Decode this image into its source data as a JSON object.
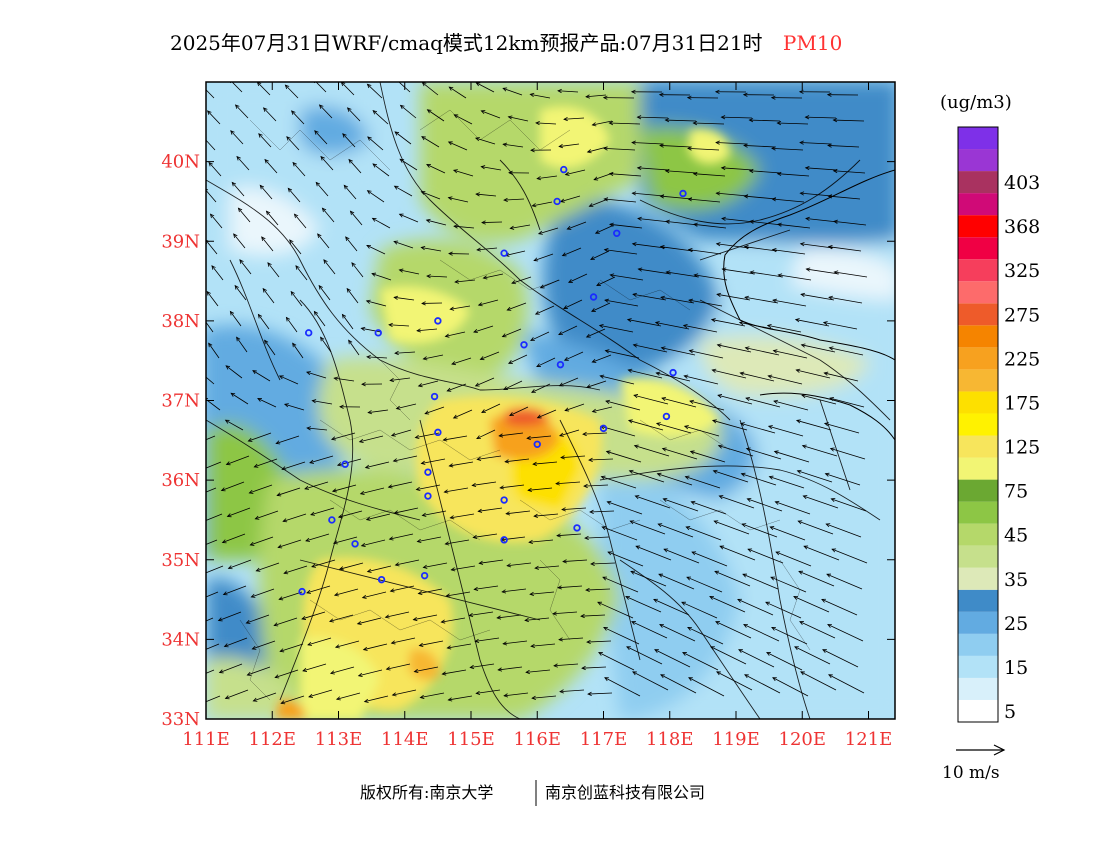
{
  "title": {
    "main": "2025年07月31日WRF/cmaq模式12km预报产品:07月31日21时",
    "species": "PM10",
    "species_color": "#ff3333"
  },
  "map": {
    "lon_ticks": [
      "111E",
      "112E",
      "113E",
      "114E",
      "115E",
      "116E",
      "117E",
      "118E",
      "119E",
      "120E",
      "121E"
    ],
    "lat_ticks": [
      "33N",
      "34N",
      "35N",
      "36N",
      "37N",
      "38N",
      "39N",
      "40N"
    ],
    "lon_range": [
      111,
      121.4
    ],
    "lat_range": [
      33,
      41
    ],
    "tick_label_color": "#ee3333",
    "stations": [
      [
        116.4,
        39.9
      ],
      [
        117.2,
        39.1
      ],
      [
        114.5,
        38.0
      ],
      [
        113.6,
        37.85
      ],
      [
        115.5,
        38.85
      ],
      [
        114.5,
        36.6
      ],
      [
        116.0,
        36.45
      ],
      [
        115.5,
        35.75
      ],
      [
        113.65,
        34.75
      ],
      [
        114.35,
        35.8
      ],
      [
        113.25,
        35.2
      ],
      [
        112.45,
        34.6
      ],
      [
        114.3,
        34.8
      ],
      [
        118.2,
        39.6
      ],
      [
        116.3,
        39.5
      ],
      [
        112.55,
        37.85
      ],
      [
        114.45,
        37.05
      ],
      [
        115.8,
        37.7
      ],
      [
        116.35,
        37.45
      ],
      [
        116.85,
        38.3
      ],
      [
        117.0,
        36.65
      ],
      [
        117.95,
        36.8
      ],
      [
        118.05,
        37.35
      ],
      [
        116.6,
        35.4
      ],
      [
        114.35,
        36.1
      ],
      [
        112.9,
        35.5
      ],
      [
        113.1,
        36.2
      ],
      [
        115.5,
        35.25
      ]
    ]
  },
  "colorbar": {
    "unit": "(ug/m3)",
    "bins": [
      {
        "color": "#ffffff"
      },
      {
        "color": "#d8f0fa"
      },
      {
        "color": "#b2e2f7"
      },
      {
        "color": "#8fcdf0"
      },
      {
        "color": "#62abe1"
      },
      {
        "color": "#3f8bc8"
      },
      {
        "color": "#dde9b8"
      },
      {
        "color": "#c6e08c"
      },
      {
        "color": "#b5d86a"
      },
      {
        "color": "#8dc645"
      },
      {
        "color": "#6ba832"
      },
      {
        "color": "#f2f574"
      },
      {
        "color": "#f7e55c"
      },
      {
        "color": "#fff200"
      },
      {
        "color": "#fde000"
      },
      {
        "color": "#f7b733"
      },
      {
        "color": "#f7a11f"
      },
      {
        "color": "#f58400"
      },
      {
        "color": "#ee5b2a"
      },
      {
        "color": "#fd6b6b"
      },
      {
        "color": "#f63e5c"
      },
      {
        "color": "#f00044"
      },
      {
        "color": "#ff0000"
      },
      {
        "color": "#d00a77"
      },
      {
        "color": "#a93260"
      },
      {
        "color": "#9a36d4"
      },
      {
        "color": "#7e30e8"
      }
    ],
    "labels": [
      "5",
      "15",
      "25",
      "35",
      "45",
      "75",
      "125",
      "175",
      "225",
      "275",
      "325",
      "368",
      "403"
    ]
  },
  "wind_legend": {
    "label": "10 m/s"
  },
  "footer": {
    "left": "版权所有:南京大学",
    "right": "南京创蓝科技有限公司"
  }
}
